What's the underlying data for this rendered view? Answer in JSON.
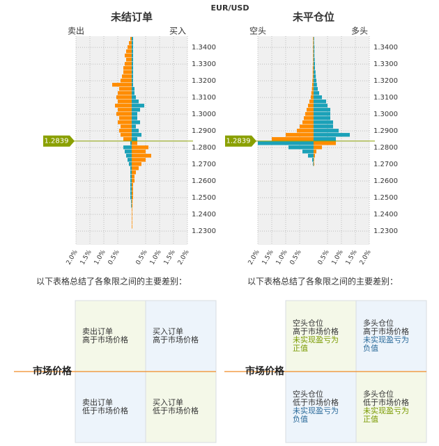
{
  "page_title": "EUR/USD",
  "chart_data": [
    {
      "type": "butterfly",
      "title": "未结订单",
      "left_label": "卖出",
      "right_label": "买入",
      "current_price": {
        "value": 1.2839,
        "label": "1.2839"
      },
      "price_color": "#8aa000",
      "xlim": [
        -2,
        2
      ],
      "xticks": [
        {
          "value": -2,
          "label": "2.0%"
        },
        {
          "value": -1.5,
          "label": "1.5%"
        },
        {
          "value": -1,
          "label": "1.0%"
        },
        {
          "value": -0.5,
          "label": "0.5%"
        },
        {
          "value": 0.5,
          "label": "0.5%"
        },
        {
          "value": 1,
          "label": "1.0%"
        },
        {
          "value": 1.5,
          "label": "1.5%"
        },
        {
          "value": 2,
          "label": "2.0%"
        }
      ],
      "ylim": [
        1.2217,
        1.3467
      ],
      "yticks": [
        {
          "value": 1.34,
          "label": "1.3400"
        },
        {
          "value": 1.33,
          "label": "1.3300"
        },
        {
          "value": 1.32,
          "label": "1.3200"
        },
        {
          "value": 1.31,
          "label": "1.3100"
        },
        {
          "value": 1.3,
          "label": "1.3000"
        },
        {
          "value": 1.29,
          "label": "1.2900"
        },
        {
          "value": 1.28,
          "label": "1.2800"
        },
        {
          "value": 1.27,
          "label": "1.2700"
        },
        {
          "value": 1.26,
          "label": "1.2600"
        },
        {
          "value": 1.25,
          "label": "1.2500"
        },
        {
          "value": 1.24,
          "label": "1.2400"
        },
        {
          "value": 1.23,
          "label": "1.2300"
        }
      ],
      "grid": true,
      "y": [
        1.345,
        1.3425,
        1.34,
        1.3375,
        1.335,
        1.3325,
        1.33,
        1.3275,
        1.325,
        1.3225,
        1.32,
        1.3175,
        1.315,
        1.3125,
        1.31,
        1.3075,
        1.305,
        1.3025,
        1.3,
        1.2975,
        1.295,
        1.2925,
        1.29,
        1.2875,
        1.285,
        1.2825,
        1.28,
        1.2775,
        1.275,
        1.2725,
        1.27,
        1.2675,
        1.265,
        1.2625,
        1.26,
        1.2575,
        1.255,
        1.2525,
        1.25,
        1.2475,
        1.245,
        1.2425,
        1.24,
        1.2375,
        1.235,
        1.2325
      ],
      "series": [
        {
          "color_above": "#ff8c00",
          "color_below": "#1ba1b8",
          "values": [
            -0.05,
            -0.1,
            -0.15,
            -0.2,
            -0.25,
            -0.2,
            -0.25,
            -0.3,
            -0.3,
            -0.35,
            -0.4,
            -0.7,
            -0.45,
            -0.5,
            -0.55,
            -0.5,
            -0.6,
            -0.5,
            -0.55,
            -0.45,
            -0.5,
            -0.4,
            -0.45,
            -0.4,
            -0.3,
            -0.05,
            -0.3,
            -0.25,
            -0.2,
            -0.15,
            -0.1,
            -0.05,
            -0.05,
            -0.05,
            -0.05,
            -0.05,
            -0.05,
            -0.05,
            -0.05,
            -0.02,
            -0.02,
            0,
            0,
            0,
            0,
            0
          ]
        },
        {
          "color_above": "#1ba1b8",
          "color_below": "#ff8c00",
          "values": [
            0.05,
            0.05,
            0.05,
            0.05,
            0.05,
            0.05,
            0.05,
            0.05,
            0.05,
            0.05,
            0.05,
            0.05,
            0.1,
            0.1,
            0.15,
            0.25,
            0.45,
            0.3,
            0.2,
            0.2,
            0.3,
            0.15,
            0.25,
            0.35,
            0.2,
            0.2,
            0.6,
            0.5,
            0.7,
            0.5,
            0.35,
            0.25,
            0.15,
            0.1,
            0.1,
            0.05,
            0.05,
            0.05,
            0.05,
            0.03,
            0.03,
            0.02,
            0.02,
            0.02,
            0.02,
            0.02
          ]
        }
      ]
    },
    {
      "type": "butterfly",
      "title": "未平仓位",
      "left_label": "空头",
      "right_label": "多头",
      "current_price": {
        "value": 1.2839,
        "label": "1.2839"
      },
      "price_color": "#8aa000",
      "xlim": [
        -2,
        2
      ],
      "xticks": [
        {
          "value": -2,
          "label": "2.0%"
        },
        {
          "value": -1.5,
          "label": "1.5%"
        },
        {
          "value": -1,
          "label": "1.0%"
        },
        {
          "value": -0.5,
          "label": "0.5%"
        },
        {
          "value": 0.5,
          "label": "0.5%"
        },
        {
          "value": 1,
          "label": "1.0%"
        },
        {
          "value": 1.5,
          "label": "1.5%"
        },
        {
          "value": 2,
          "label": "2.0%"
        }
      ],
      "ylim": [
        1.2217,
        1.3467
      ],
      "yticks": [
        {
          "value": 1.34,
          "label": "1.3400"
        },
        {
          "value": 1.33,
          "label": "1.3300"
        },
        {
          "value": 1.32,
          "label": "1.3200"
        },
        {
          "value": 1.31,
          "label": "1.3100"
        },
        {
          "value": 1.3,
          "label": "1.3000"
        },
        {
          "value": 1.29,
          "label": "1.2900"
        },
        {
          "value": 1.28,
          "label": "1.2800"
        },
        {
          "value": 1.27,
          "label": "1.2700"
        },
        {
          "value": 1.26,
          "label": "1.2600"
        },
        {
          "value": 1.25,
          "label": "1.2500"
        },
        {
          "value": 1.24,
          "label": "1.2400"
        },
        {
          "value": 1.23,
          "label": "1.2300"
        }
      ],
      "grid": true,
      "y": [
        1.345,
        1.3425,
        1.34,
        1.3375,
        1.335,
        1.3325,
        1.33,
        1.3275,
        1.325,
        1.3225,
        1.32,
        1.3175,
        1.315,
        1.3125,
        1.31,
        1.3075,
        1.305,
        1.3025,
        1.3,
        1.2975,
        1.295,
        1.2925,
        1.29,
        1.2875,
        1.285,
        1.2825,
        1.28,
        1.2775,
        1.275,
        1.2725,
        1.27,
        1.2675,
        1.265,
        1.2625,
        1.26,
        1.2575,
        1.255,
        1.2525,
        1.25,
        1.2475,
        1.245,
        1.2425,
        1.24,
        1.2375,
        1.235,
        1.2325
      ],
      "series": [
        {
          "color_above": "#ff8c00",
          "color_below": "#1ba1b8",
          "values": [
            -0.02,
            -0.02,
            -0.02,
            -0.02,
            -0.02,
            -0.02,
            -0.02,
            -0.03,
            -0.03,
            -0.03,
            -0.04,
            -0.05,
            -0.06,
            -0.08,
            -0.1,
            -0.15,
            -0.2,
            -0.25,
            -0.3,
            -0.35,
            -0.4,
            -0.5,
            -0.6,
            -1.0,
            -1.5,
            -2.0,
            -0.9,
            -0.4,
            -0.2,
            -0.05,
            -0.02,
            0,
            0,
            0,
            0,
            0,
            0,
            0,
            0,
            0,
            0,
            0,
            0,
            0,
            0,
            0
          ]
        },
        {
          "color_above": "#1ba1b8",
          "color_below": "#ff8c00",
          "values": [
            0.02,
            0.02,
            0.03,
            0.03,
            0.03,
            0.04,
            0.05,
            0.05,
            0.07,
            0.08,
            0.1,
            0.12,
            0.15,
            0.2,
            0.3,
            0.45,
            0.5,
            0.6,
            0.6,
            0.6,
            0.7,
            0.7,
            0.9,
            1.3,
            0.8,
            0.8,
            0.3,
            0.1,
            0.05,
            0.02,
            0.02,
            0,
            0,
            0,
            0,
            0,
            0,
            0,
            0,
            0,
            0,
            0,
            0,
            0,
            0,
            0
          ]
        }
      ]
    }
  ],
  "quadrants": [
    {
      "intro": "以下表格总结了各象限之间的主要差别：",
      "market_label": "市场价格",
      "line_color": "#f08a24",
      "cells": [
        {
          "bg": "#f4f8e8",
          "lines": [
            "卖出订单",
            "高于市场价格"
          ]
        },
        {
          "bg": "#edf4fb",
          "lines": [
            "买入订单",
            "高于市场价格"
          ]
        },
        {
          "bg": "#edf4fb",
          "lines": [
            "卖出订单",
            "低于市场价格"
          ]
        },
        {
          "bg": "#f4f8e8",
          "lines": [
            "买入订单",
            "低于市场价格"
          ]
        }
      ]
    },
    {
      "intro": "以下表格总结了各象限之间的主要差别：",
      "market_label": "市场价格",
      "line_color": "#f08a24",
      "cells": [
        {
          "bg": "#f4f8e8",
          "lines": [
            "空头仓位",
            "高于市场价格"
          ],
          "note": [
            "未实现盈亏为",
            "正值"
          ],
          "note_color": "#7a9a00"
        },
        {
          "bg": "#edf4fb",
          "lines": [
            "多头仓位",
            "高于市场价格"
          ],
          "note": [
            "未实现盈亏为",
            "负值"
          ],
          "note_color": "#2a6a9a"
        },
        {
          "bg": "#edf4fb",
          "lines": [
            "空头仓位",
            "低于市场价格"
          ],
          "note": [
            "未实现盈亏为",
            "负值"
          ],
          "note_color": "#2a6a9a"
        },
        {
          "bg": "#f4f8e8",
          "lines": [
            "多头仓位",
            "低于市场价格"
          ],
          "note": [
            "未实现盈亏为",
            "正值"
          ],
          "note_color": "#7a9a00"
        }
      ]
    }
  ]
}
